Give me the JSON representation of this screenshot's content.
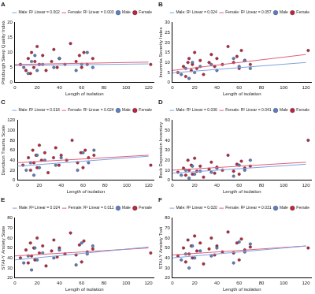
{
  "chart_data": [
    {
      "type": "scatter",
      "title": "A",
      "x_label": "Length of isolation",
      "y_label": "Pittsburgh Sleep Quality Index",
      "xlim": [
        0,
        125
      ],
      "xticks": [
        0,
        20,
        40,
        60,
        80,
        100,
        120
      ],
      "ylim": [
        0,
        20
      ],
      "yticks": [
        0,
        5,
        10,
        15,
        20
      ],
      "grid": false,
      "legend": "top",
      "series": [
        {
          "name": "Male",
          "color": "#5b7fc7",
          "marker": "circle",
          "x": [
            8,
            12,
            15,
            18,
            20,
            25,
            35,
            40,
            55,
            60,
            65,
            70
          ],
          "values": [
            5,
            3,
            7,
            9,
            4,
            6,
            5,
            8,
            4,
            6,
            10,
            5
          ]
        },
        {
          "name": "Female",
          "color": "#c0243c",
          "marker": "circle",
          "x": [
            5,
            10,
            12,
            14,
            15,
            17,
            18,
            20,
            22,
            25,
            28,
            33,
            35,
            38,
            40,
            45,
            50,
            55,
            58,
            60,
            62,
            65,
            70,
            122
          ],
          "values": [
            6,
            4,
            8,
            3,
            10,
            5,
            7,
            12,
            6,
            9,
            4,
            7,
            11,
            5,
            8,
            6,
            13,
            7,
            9,
            5,
            10,
            6,
            8,
            6
          ]
        },
        {
          "name": "Male: R² Linear = 0.002",
          "type": "line",
          "line_style": "solid",
          "color": "#7fa3e0",
          "x": [
            0,
            120
          ],
          "values": [
            5.6,
            6.2
          ]
        },
        {
          "name": "Female: R² Linear = 0.003",
          "type": "line",
          "line_style": "solid",
          "color": "#e0607a",
          "x": [
            0,
            120
          ],
          "values": [
            6.0,
            6.8
          ]
        }
      ]
    },
    {
      "type": "scatter",
      "title": "B",
      "x_label": "Length of isolation",
      "y_label": "Insomnia Severity Index",
      "xlim": [
        0,
        125
      ],
      "xticks": [
        0,
        20,
        40,
        60,
        80,
        100,
        120
      ],
      "ylim": [
        0,
        30
      ],
      "yticks": [
        0,
        5,
        10,
        15,
        20,
        25,
        30
      ],
      "grid": false,
      "legend": "top",
      "series": [
        {
          "name": "Male",
          "color": "#5b7fc7",
          "marker": "circle",
          "x": [
            8,
            12,
            15,
            18,
            20,
            25,
            35,
            40,
            55,
            60,
            65,
            70
          ],
          "values": [
            4,
            7,
            2,
            10,
            5,
            8,
            9,
            6,
            12,
            8,
            11,
            7
          ]
        },
        {
          "name": "Female",
          "color": "#c0243c",
          "marker": "circle",
          "x": [
            5,
            10,
            12,
            14,
            15,
            17,
            18,
            20,
            22,
            25,
            28,
            33,
            35,
            38,
            40,
            45,
            50,
            55,
            58,
            60,
            62,
            65,
            70,
            122
          ],
          "values": [
            5,
            8,
            3,
            10,
            12,
            6,
            9,
            15,
            7,
            11,
            4,
            10,
            14,
            8,
            12,
            9,
            18,
            10,
            13,
            7,
            16,
            11,
            9,
            16
          ]
        },
        {
          "name": "Male: R² Linear = 0.024",
          "type": "line",
          "line_style": "solid",
          "color": "#7fa3e0",
          "x": [
            0,
            120
          ],
          "values": [
            4.8,
            10
          ]
        },
        {
          "name": "Female: R² Linear = 0.057",
          "type": "line",
          "line_style": "solid",
          "color": "#e0607a",
          "x": [
            0,
            120
          ],
          "values": [
            6,
            14
          ]
        }
      ]
    },
    {
      "type": "scatter",
      "title": "C",
      "x_label": "Length of isolation",
      "y_label": "Davidson Trauma Scale",
      "xlim": [
        0,
        125
      ],
      "xticks": [
        0,
        20,
        40,
        60,
        80,
        100,
        120
      ],
      "ylim": [
        0,
        120
      ],
      "yticks": [
        0,
        20,
        40,
        60,
        80,
        100,
        120
      ],
      "grid": false,
      "legend": "top",
      "series": [
        {
          "name": "Male",
          "color": "#5b7fc7",
          "marker": "circle",
          "x": [
            8,
            12,
            15,
            18,
            20,
            25,
            35,
            40,
            55,
            60,
            65,
            70
          ],
          "values": [
            20,
            35,
            10,
            50,
            25,
            40,
            30,
            45,
            20,
            55,
            35,
            60
          ]
        },
        {
          "name": "Female",
          "color": "#c0243c",
          "marker": "circle",
          "x": [
            5,
            10,
            12,
            14,
            15,
            17,
            18,
            20,
            22,
            25,
            28,
            33,
            35,
            38,
            40,
            45,
            50,
            55,
            58,
            60,
            62,
            65,
            70,
            122
          ],
          "values": [
            30,
            45,
            20,
            60,
            35,
            50,
            25,
            70,
            40,
            55,
            15,
            45,
            65,
            30,
            50,
            40,
            80,
            35,
            55,
            25,
            60,
            45,
            50,
            30
          ]
        },
        {
          "name": "Male: R² Linear = 0.018",
          "type": "line",
          "line_style": "solid",
          "color": "#7fa3e0",
          "x": [
            0,
            120
          ],
          "values": [
            28,
            48
          ]
        },
        {
          "name": "Female: R² Linear = 0.024",
          "type": "line",
          "line_style": "solid",
          "color": "#e0607a",
          "x": [
            0,
            120
          ],
          "values": [
            35,
            50
          ]
        }
      ]
    },
    {
      "type": "scatter",
      "title": "D",
      "x_label": "Length of isolation",
      "y_label": "Beck Depression Inventory",
      "xlim": [
        0,
        125
      ],
      "xticks": [
        0,
        20,
        40,
        60,
        80,
        100,
        120
      ],
      "ylim": [
        0,
        60
      ],
      "yticks": [
        0,
        10,
        20,
        30,
        40,
        50,
        60
      ],
      "grid": false,
      "legend": "top",
      "series": [
        {
          "name": "Male",
          "color": "#5b7fc7",
          "marker": "circle",
          "x": [
            8,
            12,
            15,
            18,
            20,
            25,
            35,
            40,
            55,
            60,
            65,
            70
          ],
          "values": [
            5,
            10,
            2,
            14,
            6,
            9,
            8,
            12,
            4,
            15,
            10,
            20
          ]
        },
        {
          "name": "Female",
          "color": "#c0243c",
          "marker": "circle",
          "x": [
            5,
            10,
            12,
            14,
            15,
            17,
            18,
            20,
            22,
            25,
            28,
            33,
            35,
            38,
            40,
            45,
            50,
            55,
            58,
            60,
            62,
            65,
            70,
            122
          ],
          "values": [
            8,
            12,
            5,
            20,
            10,
            15,
            6,
            22,
            9,
            14,
            3,
            11,
            18,
            7,
            13,
            10,
            25,
            9,
            16,
            6,
            19,
            12,
            14,
            40
          ]
        },
        {
          "name": "Male: R² Linear = 0.036",
          "type": "line",
          "line_style": "solid",
          "color": "#7fa3e0",
          "x": [
            0,
            120
          ],
          "values": [
            7,
            16
          ]
        },
        {
          "name": "Female: R² Linear = 0.041",
          "type": "line",
          "line_style": "solid",
          "color": "#e0607a",
          "x": [
            0,
            120
          ],
          "values": [
            10,
            18
          ]
        }
      ]
    },
    {
      "type": "scatter",
      "title": "E",
      "x_label": "Length of isolation",
      "y_label": "STAI-Y Anxiety State",
      "xlim": [
        0,
        125
      ],
      "xticks": [
        0,
        20,
        40,
        60,
        80,
        100,
        120
      ],
      "ylim": [
        20,
        80
      ],
      "yticks": [
        20,
        30,
        40,
        50,
        60,
        70,
        80
      ],
      "grid": false,
      "legend": "top",
      "series": [
        {
          "name": "Male",
          "color": "#5b7fc7",
          "marker": "circle",
          "x": [
            8,
            12,
            15,
            18,
            20,
            25,
            35,
            40,
            55,
            60,
            65,
            70
          ],
          "values": [
            35,
            42,
            28,
            50,
            38,
            45,
            40,
            48,
            33,
            55,
            44,
            52
          ]
        },
        {
          "name": "Female",
          "color": "#c0243c",
          "marker": "circle",
          "x": [
            5,
            10,
            12,
            14,
            15,
            17,
            18,
            20,
            22,
            25,
            28,
            33,
            35,
            38,
            40,
            45,
            50,
            55,
            58,
            60,
            62,
            65,
            70,
            122
          ],
          "values": [
            40,
            48,
            35,
            55,
            42,
            50,
            38,
            60,
            45,
            52,
            32,
            47,
            58,
            41,
            50,
            44,
            65,
            43,
            53,
            36,
            57,
            46,
            49,
            45
          ]
        },
        {
          "name": "Male: R² Linear = 0.024",
          "type": "line",
          "line_style": "solid",
          "color": "#7fa3e0",
          "x": [
            0,
            120
          ],
          "values": [
            38,
            51
          ]
        },
        {
          "name": "Female: R² Linear = 0.011",
          "type": "line",
          "line_style": "solid",
          "color": "#e0607a",
          "x": [
            0,
            120
          ],
          "values": [
            42,
            50
          ]
        }
      ]
    },
    {
      "type": "scatter",
      "title": "F",
      "x_label": "Length of isolation",
      "y_label": "STAI-Y Anxiety Trait",
      "xlim": [
        0,
        125
      ],
      "xticks": [
        0,
        20,
        40,
        60,
        80,
        100,
        120
      ],
      "ylim": [
        20,
        80
      ],
      "yticks": [
        20,
        30,
        40,
        50,
        60,
        70,
        80
      ],
      "grid": false,
      "legend": "top",
      "series": [
        {
          "name": "Male",
          "color": "#5b7fc7",
          "marker": "circle",
          "x": [
            8,
            12,
            15,
            18,
            20,
            25,
            35,
            40,
            55,
            60,
            65,
            70
          ],
          "values": [
            38,
            44,
            30,
            52,
            40,
            47,
            42,
            50,
            35,
            56,
            46,
            54
          ]
        },
        {
          "name": "Female",
          "color": "#c0243c",
          "marker": "circle",
          "x": [
            5,
            10,
            12,
            14,
            15,
            17,
            18,
            20,
            22,
            25,
            28,
            33,
            35,
            38,
            40,
            45,
            50,
            55,
            58,
            60,
            62,
            65,
            70,
            122
          ],
          "values": [
            42,
            50,
            36,
            58,
            44,
            52,
            40,
            62,
            47,
            55,
            34,
            49,
            60,
            43,
            52,
            46,
            66,
            45,
            55,
            38,
            59,
            48,
            51,
            50
          ]
        },
        {
          "name": "Male: R² Linear = 0.020",
          "type": "line",
          "line_style": "solid",
          "color": "#7fa3e0",
          "x": [
            0,
            120
          ],
          "values": [
            40,
            52
          ]
        },
        {
          "name": "Female: R² Linear = 0.031",
          "type": "line",
          "line_style": "solid",
          "color": "#e0607a",
          "x": [
            0,
            120
          ],
          "values": [
            43,
            52
          ]
        }
      ]
    }
  ]
}
